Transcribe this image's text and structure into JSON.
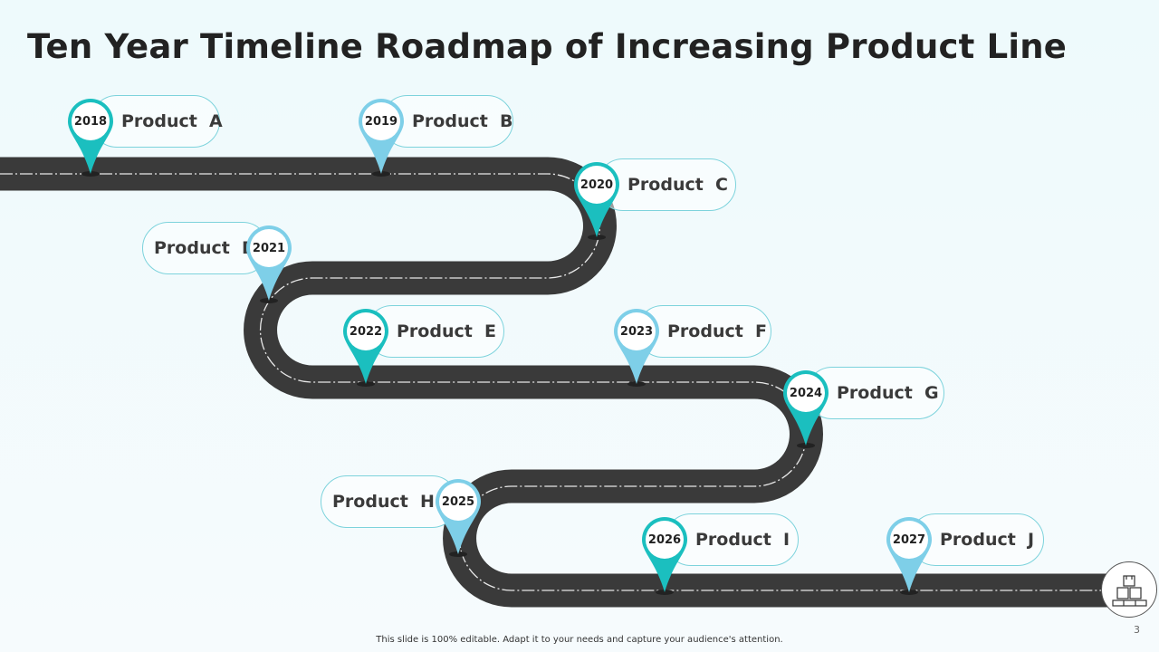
{
  "title": "Ten Year Timeline Roadmap of Increasing Product Line",
  "colors": {
    "teal": "#1bbfbf",
    "light_blue": "#7ecfe8",
    "road": "#3a3a3a"
  },
  "milestones": [
    {
      "year": "2018",
      "product": "Product  A",
      "color": "teal"
    },
    {
      "year": "2019",
      "product": "Product  B",
      "color": "light_blue"
    },
    {
      "year": "2020",
      "product": "Product  C",
      "color": "teal"
    },
    {
      "year": "2021",
      "product": "Product  D",
      "color": "light_blue"
    },
    {
      "year": "2022",
      "product": "Product  E",
      "color": "teal"
    },
    {
      "year": "2023",
      "product": "Product  F",
      "color": "light_blue"
    },
    {
      "year": "2024",
      "product": "Product  G",
      "color": "teal"
    },
    {
      "year": "2025",
      "product": "Product  H",
      "color": "light_blue"
    },
    {
      "year": "2026",
      "product": "Product  I",
      "color": "teal"
    },
    {
      "year": "2027",
      "product": "Product  J",
      "color": "light_blue"
    }
  ],
  "end_icon": "boxes-pallet-icon",
  "footer": "This slide is 100% editable.  Adapt it to your needs and capture your audience's attention.",
  "page_number": "3"
}
